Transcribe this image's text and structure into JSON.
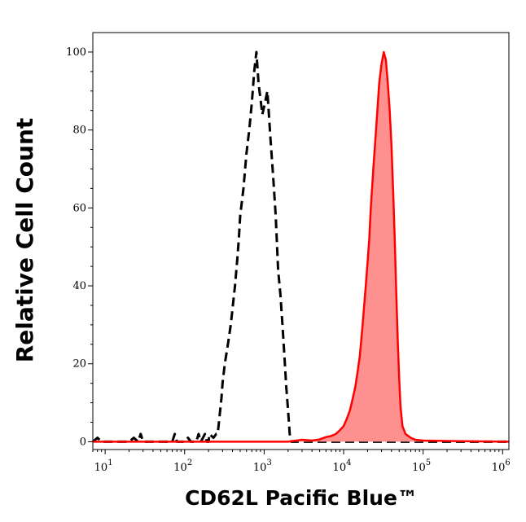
{
  "chart_data": {
    "type": "area",
    "xlabel": "CD62L Pacific Blue™",
    "ylabel": "Relative Cell Count",
    "xscale": "log",
    "xlim": [
      7,
      1200000
    ],
    "ylim": [
      -2,
      105
    ],
    "yticks": [
      0,
      20,
      40,
      60,
      80,
      100
    ],
    "xticks": [
      {
        "base": "10",
        "exp": "1",
        "value": 10
      },
      {
        "base": "10",
        "exp": "2",
        "value": 100
      },
      {
        "base": "10",
        "exp": "3",
        "value": 1000
      },
      {
        "base": "10",
        "exp": "4",
        "value": 10000
      },
      {
        "base": "10",
        "exp": "5",
        "value": 100000
      },
      {
        "base": "10",
        "exp": "6",
        "value": 1000000
      }
    ],
    "grid": false,
    "series": [
      {
        "style": "dashed",
        "color": "#000000",
        "fill": "none",
        "points": [
          [
            7,
            0
          ],
          [
            8,
            1
          ],
          [
            9,
            0
          ],
          [
            13,
            0
          ],
          [
            20,
            0
          ],
          [
            23,
            1
          ],
          [
            26,
            0
          ],
          [
            28,
            2
          ],
          [
            30,
            0
          ],
          [
            45,
            0
          ],
          [
            55,
            0
          ],
          [
            70,
            0
          ],
          [
            75,
            2
          ],
          [
            80,
            0
          ],
          [
            100,
            0
          ],
          [
            110,
            1
          ],
          [
            120,
            0
          ],
          [
            140,
            0
          ],
          [
            150,
            2
          ],
          [
            160,
            0
          ],
          [
            180,
            2
          ],
          [
            190,
            0
          ],
          [
            200,
            0
          ],
          [
            205,
            2
          ],
          [
            230,
            1
          ],
          [
            250,
            2
          ],
          [
            260,
            2
          ],
          [
            270,
            5
          ],
          [
            280,
            8
          ],
          [
            290,
            11
          ],
          [
            300,
            15
          ],
          [
            320,
            20
          ],
          [
            350,
            25
          ],
          [
            380,
            30
          ],
          [
            400,
            34
          ],
          [
            430,
            40
          ],
          [
            460,
            47
          ],
          [
            480,
            52
          ],
          [
            500,
            58
          ],
          [
            550,
            65
          ],
          [
            600,
            74
          ],
          [
            650,
            80
          ],
          [
            700,
            87
          ],
          [
            750,
            95
          ],
          [
            800,
            100
          ],
          [
            850,
            92
          ],
          [
            900,
            88
          ],
          [
            950,
            84
          ],
          [
            1000,
            86
          ],
          [
            1100,
            90
          ],
          [
            1200,
            78
          ],
          [
            1300,
            68
          ],
          [
            1400,
            58
          ],
          [
            1500,
            44
          ],
          [
            1600,
            38
          ],
          [
            1700,
            30
          ],
          [
            1800,
            22
          ],
          [
            1900,
            14
          ],
          [
            2000,
            8
          ],
          [
            2100,
            2
          ],
          [
            2200,
            0
          ],
          [
            3000,
            0
          ],
          [
            4000,
            0
          ],
          [
            6000,
            0
          ],
          [
            8000,
            0
          ],
          [
            10000,
            0
          ],
          [
            100000,
            0
          ],
          [
            1200000,
            0
          ]
        ]
      },
      {
        "style": "solid",
        "color": "#ff0000",
        "fill": "#ff9090",
        "points": [
          [
            7,
            0
          ],
          [
            100,
            0
          ],
          [
            1000,
            0
          ],
          [
            2000,
            0
          ],
          [
            3000,
            0.5
          ],
          [
            4000,
            0.3
          ],
          [
            5000,
            0.6
          ],
          [
            6000,
            1.2
          ],
          [
            7000,
            1.5
          ],
          [
            8000,
            2
          ],
          [
            9000,
            3
          ],
          [
            10000,
            4
          ],
          [
            11000,
            6
          ],
          [
            12000,
            8
          ],
          [
            13000,
            11
          ],
          [
            14000,
            14
          ],
          [
            15000,
            18
          ],
          [
            16000,
            22
          ],
          [
            17000,
            28
          ],
          [
            18000,
            34
          ],
          [
            19000,
            40
          ],
          [
            20000,
            46
          ],
          [
            21000,
            52
          ],
          [
            22000,
            60
          ],
          [
            24000,
            72
          ],
          [
            26000,
            82
          ],
          [
            28000,
            92
          ],
          [
            30000,
            97
          ],
          [
            32000,
            100
          ],
          [
            34000,
            98
          ],
          [
            36000,
            92
          ],
          [
            38000,
            85
          ],
          [
            40000,
            76
          ],
          [
            42000,
            64
          ],
          [
            44000,
            52
          ],
          [
            46000,
            38
          ],
          [
            48000,
            26
          ],
          [
            50000,
            16
          ],
          [
            52000,
            9
          ],
          [
            55000,
            4
          ],
          [
            60000,
            2
          ],
          [
            70000,
            1
          ],
          [
            80000,
            0.5
          ],
          [
            100000,
            0.3
          ],
          [
            200000,
            0.2
          ],
          [
            500000,
            0.1
          ],
          [
            1200000,
            0
          ]
        ]
      }
    ]
  }
}
